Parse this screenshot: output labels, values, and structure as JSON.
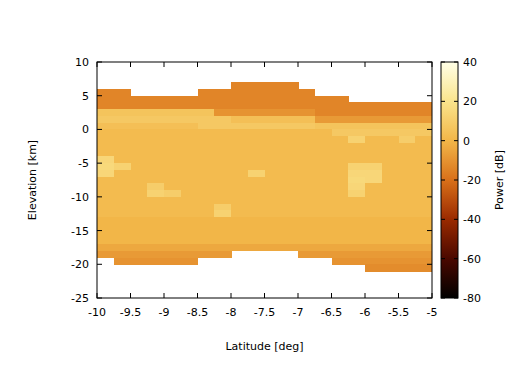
{
  "chart_data": {
    "type": "heatmap",
    "x_label": "Latitude [deg]",
    "y_label": "Elevation [km]",
    "xlim": [
      -10,
      -5
    ],
    "ylim": [
      -25,
      10
    ],
    "xticks": [
      -10,
      -9.5,
      -9,
      -8.5,
      -8,
      -7.5,
      -7,
      -6.5,
      -6,
      -5.5,
      -5
    ],
    "yticks": [
      -25,
      -20,
      -15,
      -10,
      -5,
      0,
      5,
      10
    ],
    "x": [
      -9.875,
      -9.625,
      -9.375,
      -9.125,
      -8.875,
      -8.625,
      -8.375,
      -8.125,
      -7.875,
      -7.625,
      -7.375,
      -7.125,
      -6.875,
      -6.625,
      -6.375,
      -6.125,
      -5.875,
      -5.625,
      -5.375,
      -5.125
    ],
    "y": [
      6.5,
      5.5,
      4.5,
      3.5,
      2.5,
      1.5,
      0.5,
      -0.5,
      -1.5,
      -2.5,
      -3.5,
      -4.5,
      -5.5,
      -6.5,
      -7.5,
      -8.5,
      -9.5,
      -10.5,
      -11.5,
      -12.5,
      -13.5,
      -14.5,
      -15.5,
      -16.5,
      -17.5,
      -18.5,
      -19.5,
      -20.5
    ],
    "cells": [
      [
        null,
        null,
        null,
        null,
        null,
        null,
        null,
        null,
        -14,
        -14,
        -14,
        -14,
        null,
        null,
        null,
        null,
        null,
        null,
        null,
        null
      ],
      [
        -14,
        -14,
        null,
        null,
        null,
        null,
        -14,
        -14,
        -14,
        -14,
        -14,
        -14,
        -14,
        null,
        null,
        null,
        null,
        null,
        null,
        null
      ],
      [
        -14,
        -14,
        -14,
        -14,
        -14,
        -14,
        -14,
        -14,
        -14,
        -14,
        -14,
        -14,
        -14,
        -14,
        -14,
        null,
        null,
        null,
        null,
        null
      ],
      [
        -14,
        -14,
        -14,
        -14,
        -14,
        -14,
        -14,
        -14,
        -14,
        -14,
        -14,
        -14,
        -14,
        -14,
        -14,
        -14,
        -14,
        -14,
        -14,
        -14
      ],
      [
        6,
        6,
        6,
        6,
        6,
        6,
        6,
        -10,
        -10,
        -10,
        -10,
        -10,
        -10,
        -14,
        -14,
        -14,
        -14,
        -14,
        -14,
        -14
      ],
      [
        8,
        8,
        8,
        8,
        8,
        8,
        8,
        8,
        4,
        4,
        4,
        4,
        4,
        -8,
        -8,
        -8,
        -8,
        -8,
        -8,
        -8
      ],
      [
        4,
        4,
        4,
        4,
        4,
        4,
        8,
        8,
        8,
        8,
        8,
        8,
        8,
        6,
        6,
        6,
        6,
        6,
        6,
        6
      ],
      [
        2,
        2,
        2,
        2,
        2,
        2,
        2,
        2,
        2,
        2,
        2,
        2,
        2,
        2,
        8,
        8,
        8,
        8,
        8,
        8
      ],
      [
        2,
        2,
        2,
        2,
        2,
        2,
        2,
        2,
        2,
        2,
        2,
        2,
        2,
        2,
        2,
        12,
        2,
        2,
        10,
        2
      ],
      [
        2,
        2,
        2,
        2,
        2,
        2,
        2,
        2,
        2,
        2,
        2,
        2,
        2,
        2,
        2,
        2,
        2,
        2,
        2,
        2
      ],
      [
        2,
        2,
        2,
        2,
        2,
        2,
        2,
        2,
        2,
        2,
        2,
        2,
        2,
        2,
        2,
        2,
        2,
        2,
        2,
        2
      ],
      [
        14,
        2,
        2,
        2,
        2,
        2,
        2,
        2,
        2,
        2,
        2,
        2,
        2,
        2,
        2,
        2,
        2,
        2,
        2,
        2
      ],
      [
        15,
        12,
        2,
        2,
        2,
        2,
        2,
        2,
        2,
        2,
        2,
        2,
        2,
        2,
        2,
        12,
        12,
        2,
        2,
        2
      ],
      [
        14,
        2,
        2,
        2,
        2,
        2,
        2,
        2,
        2,
        12,
        2,
        2,
        2,
        2,
        2,
        14,
        14,
        2,
        2,
        2
      ],
      [
        2,
        2,
        2,
        2,
        2,
        2,
        2,
        2,
        2,
        2,
        2,
        2,
        2,
        2,
        2,
        15,
        14,
        2,
        2,
        2
      ],
      [
        2,
        2,
        2,
        10,
        2,
        2,
        2,
        2,
        2,
        2,
        2,
        2,
        2,
        2,
        2,
        14,
        2,
        2,
        2,
        2
      ],
      [
        2,
        2,
        2,
        12,
        10,
        2,
        2,
        2,
        2,
        2,
        2,
        2,
        2,
        2,
        2,
        12,
        2,
        2,
        2,
        2
      ],
      [
        2,
        2,
        2,
        2,
        2,
        2,
        2,
        2,
        2,
        2,
        2,
        2,
        2,
        2,
        2,
        2,
        2,
        2,
        2,
        2
      ],
      [
        2,
        2,
        2,
        2,
        2,
        2,
        2,
        10,
        2,
        2,
        2,
        2,
        2,
        2,
        2,
        2,
        2,
        2,
        2,
        2
      ],
      [
        2,
        2,
        2,
        2,
        2,
        2,
        2,
        12,
        2,
        2,
        2,
        2,
        2,
        2,
        2,
        2,
        2,
        2,
        2,
        2
      ],
      [
        0,
        0,
        0,
        0,
        0,
        0,
        0,
        0,
        0,
        0,
        0,
        0,
        0,
        0,
        0,
        0,
        0,
        0,
        0,
        0
      ],
      [
        0,
        0,
        0,
        0,
        0,
        0,
        0,
        0,
        0,
        0,
        0,
        0,
        0,
        0,
        0,
        0,
        0,
        0,
        0,
        0
      ],
      [
        0,
        0,
        0,
        0,
        0,
        0,
        0,
        0,
        0,
        0,
        0,
        0,
        0,
        0,
        0,
        0,
        0,
        0,
        0,
        0
      ],
      [
        0,
        0,
        0,
        0,
        0,
        0,
        0,
        0,
        0,
        0,
        0,
        0,
        0,
        0,
        0,
        0,
        0,
        0,
        0,
        0
      ],
      [
        -4,
        -4,
        -4,
        -4,
        -4,
        -4,
        -4,
        -4,
        -4,
        -4,
        -4,
        -4,
        -4,
        -4,
        -4,
        -4,
        -4,
        -4,
        -4,
        -4
      ],
      [
        -8,
        -8,
        -8,
        -8,
        -8,
        -8,
        -8,
        -8,
        null,
        null,
        null,
        null,
        -8,
        -8,
        -8,
        -8,
        -8,
        -8,
        -8,
        -8
      ],
      [
        null,
        -10,
        -10,
        -10,
        -10,
        -10,
        null,
        null,
        null,
        null,
        null,
        null,
        null,
        null,
        -10,
        -10,
        -10,
        -10,
        -10,
        -10
      ],
      [
        null,
        null,
        null,
        null,
        null,
        null,
        null,
        null,
        null,
        null,
        null,
        null,
        null,
        null,
        null,
        null,
        -12,
        -12,
        -12,
        -12
      ]
    ],
    "colorbar": {
      "range": [
        -80,
        40
      ],
      "ticks": [
        -80,
        -60,
        -40,
        -20,
        0,
        20,
        40
      ],
      "label": "Power [dB]"
    }
  }
}
